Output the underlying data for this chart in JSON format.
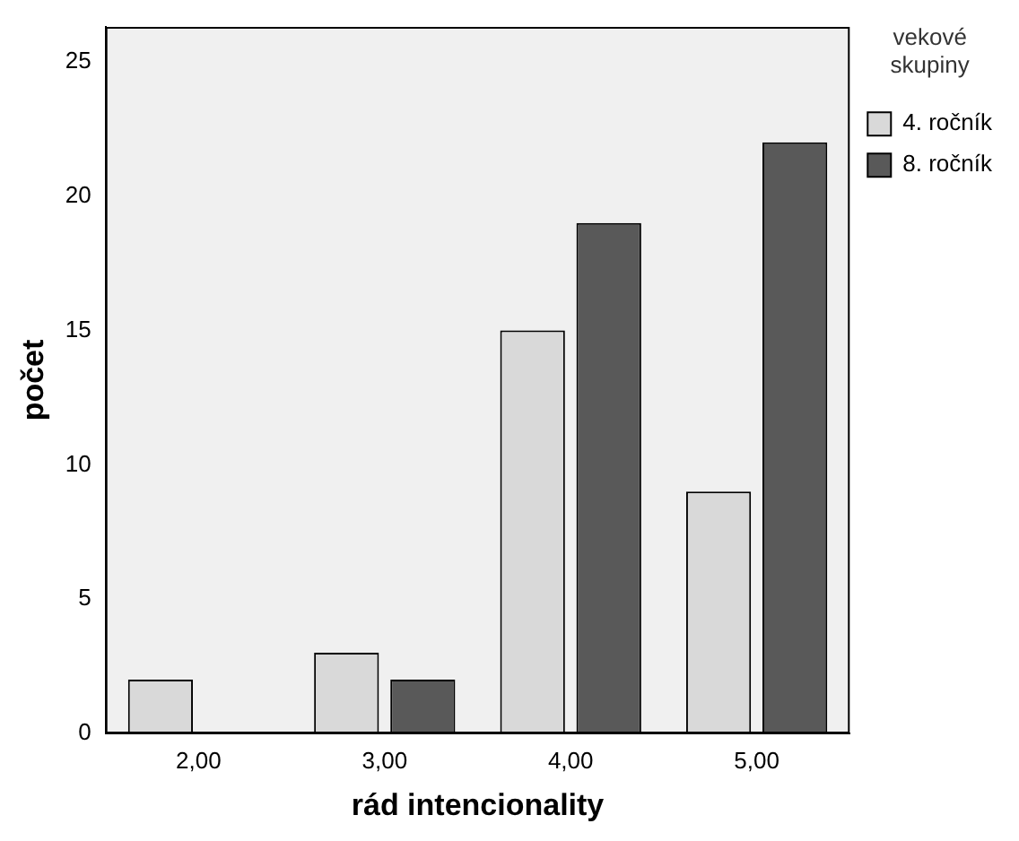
{
  "chart_data": {
    "type": "bar",
    "xlabel": "rád intencionality",
    "ylabel": "počet",
    "legend_title": "vekové skupiny",
    "legend": "right",
    "grid": false,
    "categories": [
      "2,00",
      "3,00",
      "4,00",
      "5,00"
    ],
    "series": [
      {
        "name": "4. ročník",
        "color": "#d9d9d9",
        "values": [
          2,
          3,
          15,
          9
        ]
      },
      {
        "name": "8. ročník",
        "color": "#595959",
        "values": [
          0,
          2,
          19,
          22
        ]
      }
    ],
    "ylim": [
      0,
      26.3
    ],
    "yticks": [
      0,
      5,
      10,
      15,
      20,
      25
    ]
  }
}
